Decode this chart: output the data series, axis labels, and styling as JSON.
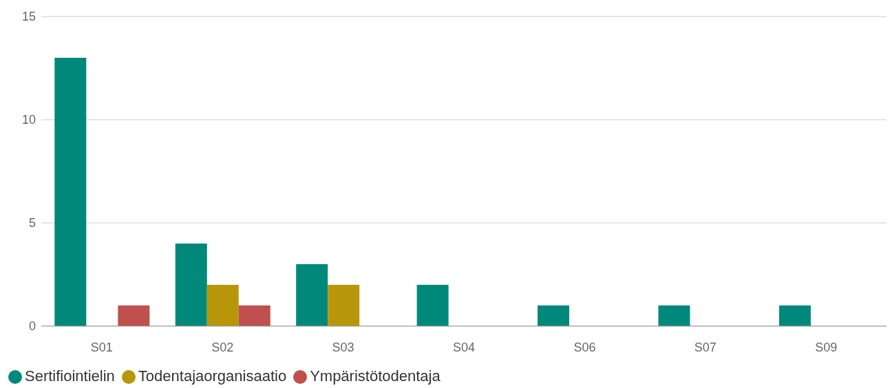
{
  "chart_data": {
    "type": "bar",
    "categories": [
      "S01",
      "S02",
      "S03",
      "S04",
      "S06",
      "S07",
      "S09"
    ],
    "series": [
      {
        "name": "Sertifiointielin",
        "color": "#00897b",
        "values": [
          13,
          4,
          3,
          2,
          1,
          1,
          1
        ]
      },
      {
        "name": "Todentajaorganisaatio",
        "color": "#b8960c",
        "values": [
          null,
          2,
          2,
          null,
          null,
          null,
          null
        ]
      },
      {
        "name": "Ympäristötodentaja",
        "color": "#c0504d",
        "values": [
          1,
          1,
          null,
          null,
          null,
          null,
          null
        ]
      }
    ],
    "ylim": [
      0,
      15
    ],
    "yticks": [
      0,
      5,
      10,
      15
    ],
    "grid": "y",
    "legend": "bottom left"
  }
}
